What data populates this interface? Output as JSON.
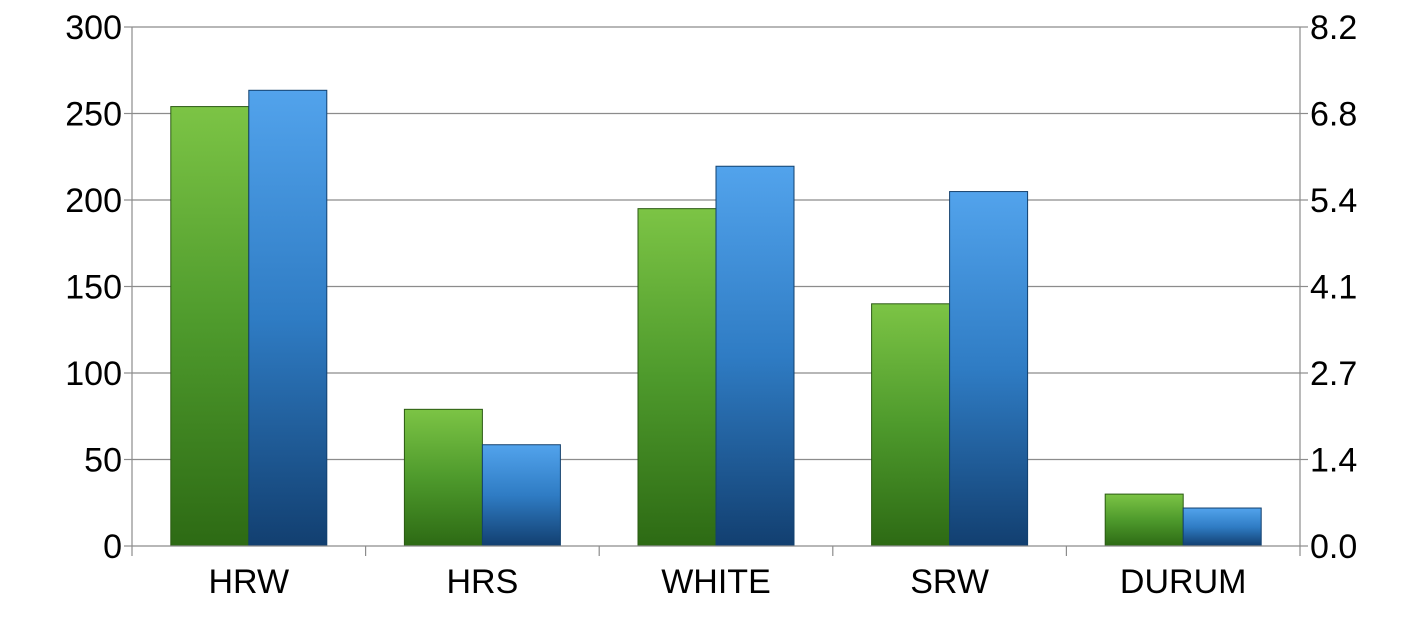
{
  "chart_data": {
    "type": "bar",
    "categories": [
      "HRW",
      "HRS",
      "WHITE",
      "SRW",
      "DURUM"
    ],
    "series": [
      {
        "values": [
          254,
          79,
          195,
          140,
          30
        ],
        "axis": "left",
        "color": "#4e9a2c"
      },
      {
        "values": [
          7.2,
          1.6,
          6.0,
          5.6,
          0.6
        ],
        "axis": "right",
        "color": "#2f7cc4"
      }
    ],
    "y_left": {
      "ylim": [
        0,
        300
      ],
      "ticks": [
        "0",
        "50",
        "100",
        "150",
        "200",
        "250",
        "300"
      ]
    },
    "y_right": {
      "ylim": [
        0,
        8.2
      ],
      "ticks": [
        "0.0",
        "1.4",
        "2.7",
        "4.1",
        "5.4",
        "6.8",
        "8.2"
      ]
    },
    "grid": true,
    "legend": "none",
    "title": "",
    "xlabel": "",
    "ylabel": ""
  }
}
